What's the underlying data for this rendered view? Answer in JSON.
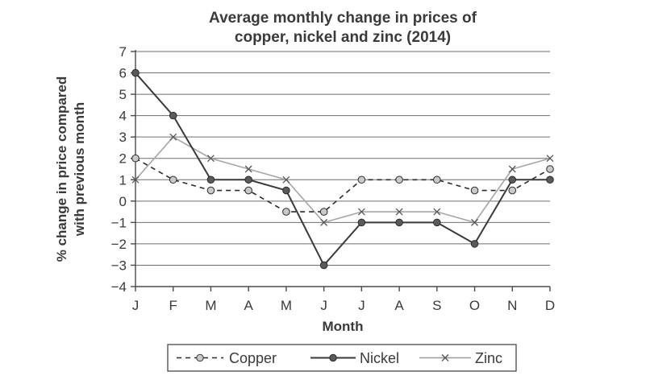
{
  "chart_data": {
    "type": "line",
    "title": [
      "Average monthly change in prices of",
      "copper, nickel and zinc (2014)"
    ],
    "xlabel": "Month",
    "ylabel": [
      "% change in price compared",
      "with previous month"
    ],
    "categories": [
      "J",
      "F",
      "M",
      "A",
      "M",
      "J",
      "J",
      "A",
      "S",
      "O",
      "N",
      "D"
    ],
    "ylim": [
      -4,
      7
    ],
    "yticks": [
      "7",
      "6",
      "5",
      "4",
      "3",
      "2",
      "1",
      "0",
      "−1",
      "−2",
      "−3",
      "−4"
    ],
    "grid": true,
    "legend_position": "bottom",
    "series": [
      {
        "name": "Copper",
        "style": "dashed",
        "marker": "circle-light",
        "color": "#2a2a2a",
        "values": [
          2,
          1,
          0.5,
          0.5,
          -0.5,
          -0.5,
          1,
          1,
          1,
          0.5,
          0.5,
          1.5
        ]
      },
      {
        "name": "Nickel",
        "style": "solid",
        "marker": "circle-dark",
        "color": "#3a3a3a",
        "values": [
          6,
          4,
          1,
          1,
          0.5,
          -3,
          -1,
          -1,
          -1,
          -2,
          1,
          1
        ]
      },
      {
        "name": "Zinc",
        "style": "solid-light",
        "marker": "x",
        "color": "#9a9a9a",
        "values": [
          1,
          3,
          2,
          1.5,
          1,
          -1,
          -0.5,
          -0.5,
          -0.5,
          -1,
          1.5,
          2
        ]
      }
    ]
  }
}
